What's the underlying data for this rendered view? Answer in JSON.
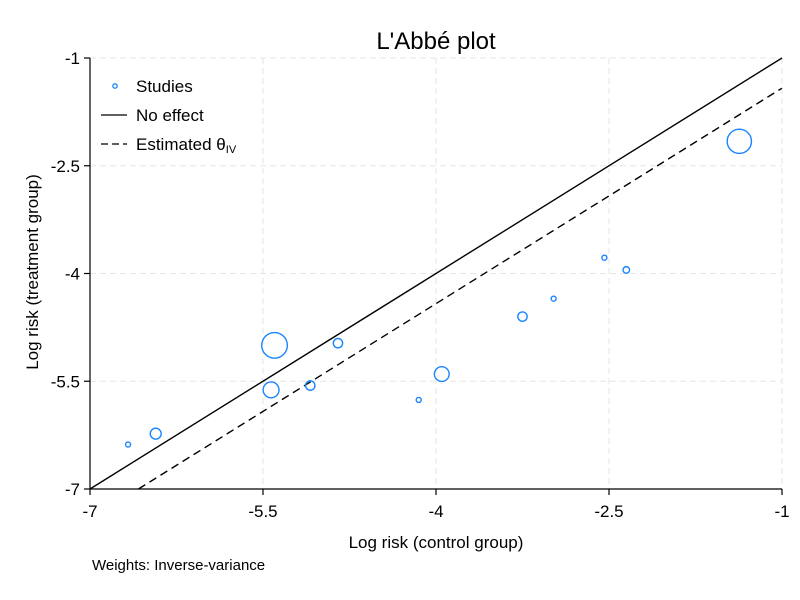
{
  "chart_data": {
    "type": "scatter",
    "title": "L'Abbé plot",
    "xlabel": "Log risk (control group)",
    "ylabel": "Log risk (treatment group)",
    "xlim": [
      -7,
      -1
    ],
    "ylim": [
      -7,
      -1
    ],
    "x_ticks": [
      -7,
      -5.5,
      -4,
      -2.5,
      -1
    ],
    "x_tick_labels": [
      "-7",
      "-5.5",
      "-4",
      "-2.5",
      "-1"
    ],
    "y_ticks": [
      -7,
      -5.5,
      -4,
      -2.5,
      -1
    ],
    "y_tick_labels": [
      "-7",
      "-5.5",
      "-4",
      "-2.5",
      "-1"
    ],
    "grid": true,
    "legend_position": "top-left",
    "legend": {
      "studies": "Studies",
      "no_effect": "No effect",
      "estimated_prefix": "Estimated θ",
      "estimated_sub": "IV"
    },
    "studies": [
      {
        "x": -6.67,
        "y": -6.38,
        "weight": 0.5
      },
      {
        "x": -6.43,
        "y": -6.23,
        "weight": 2
      },
      {
        "x": -5.4,
        "y": -5.0,
        "weight": 10
      },
      {
        "x": -5.43,
        "y": -5.62,
        "weight": 4
      },
      {
        "x": -5.09,
        "y": -5.56,
        "weight": 1.5
      },
      {
        "x": -4.85,
        "y": -4.97,
        "weight": 1.5
      },
      {
        "x": -4.15,
        "y": -5.76,
        "weight": 0.5
      },
      {
        "x": -3.95,
        "y": -5.4,
        "weight": 3.5
      },
      {
        "x": -3.25,
        "y": -4.6,
        "weight": 1.5
      },
      {
        "x": -2.98,
        "y": -4.35,
        "weight": 0.5
      },
      {
        "x": -2.54,
        "y": -3.78,
        "weight": 0.5
      },
      {
        "x": -2.35,
        "y": -3.95,
        "weight": 0.8
      },
      {
        "x": -1.37,
        "y": -2.16,
        "weight": 9
      }
    ],
    "no_effect_line": {
      "intercept": 0,
      "slope": 1
    },
    "estimated_line": {
      "intercept": -0.42,
      "slope": 1
    },
    "colors": {
      "points": "#1a85ff",
      "line": "#000000",
      "grid": "#e6e6e6"
    }
  },
  "footer": {
    "note": "Weights: Inverse-variance"
  }
}
